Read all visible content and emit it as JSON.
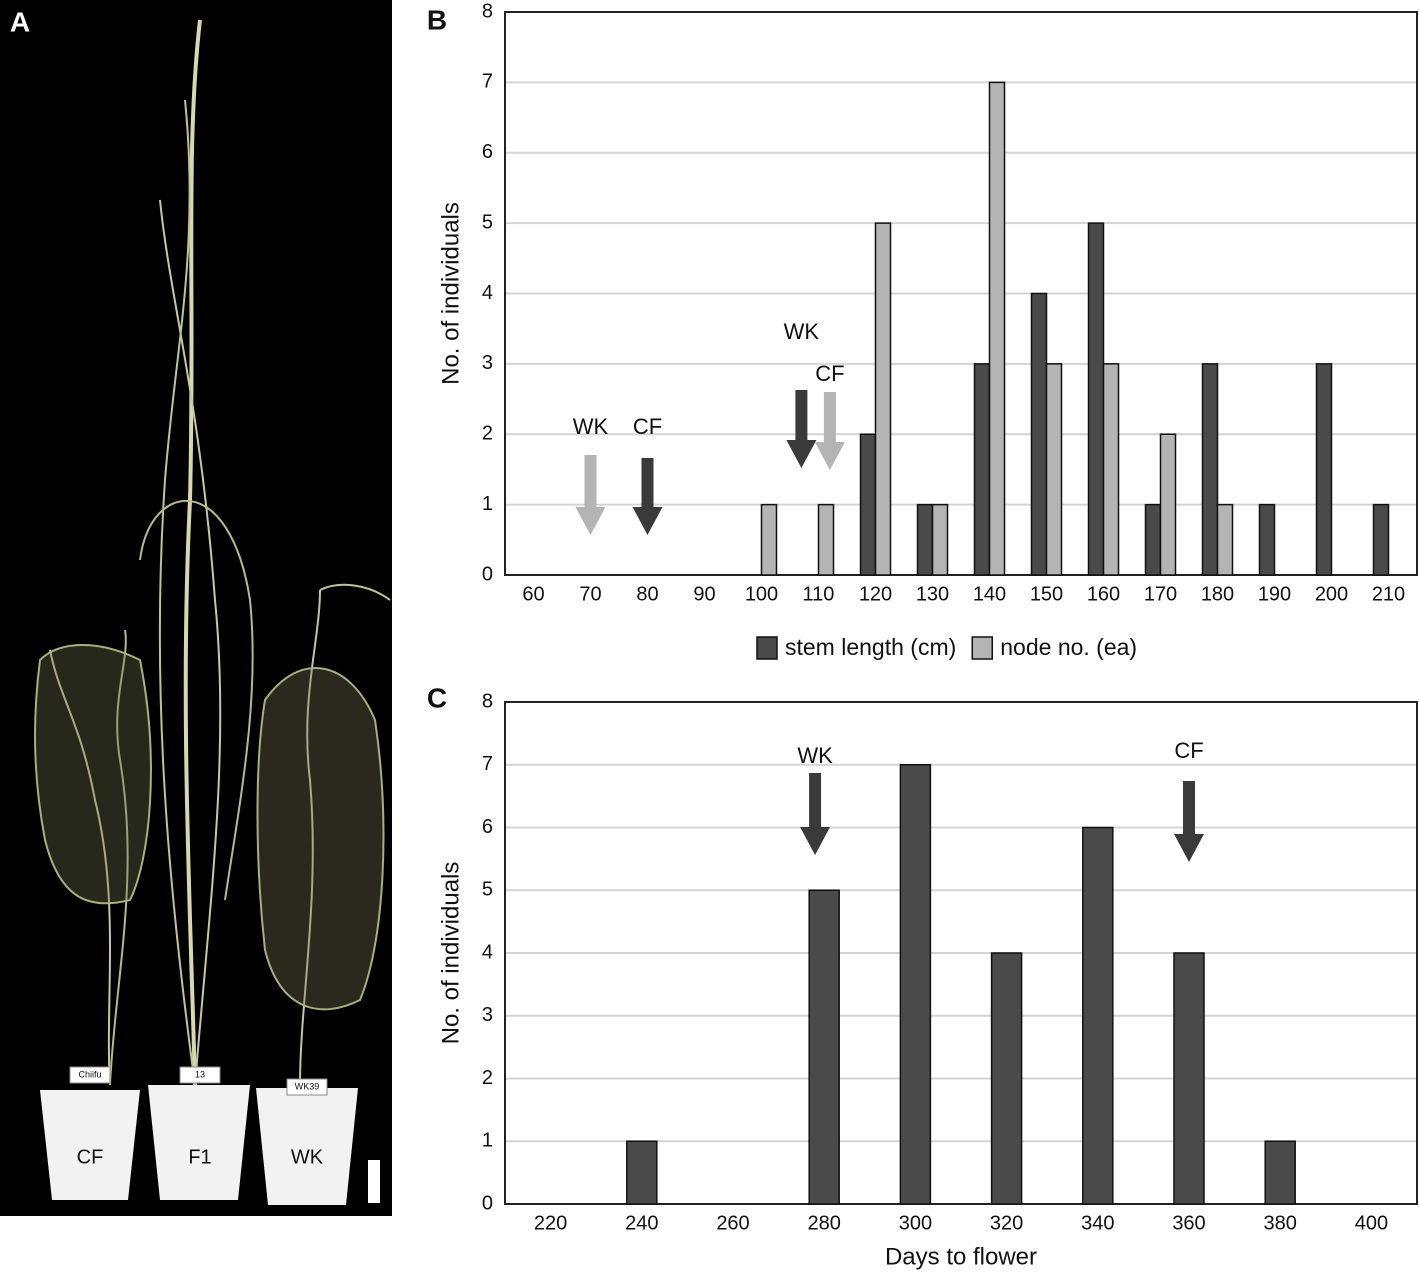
{
  "photo": {
    "label": "A",
    "pot_labels": [
      "CF",
      "F1",
      "WK"
    ],
    "tag_labels": [
      "Chiifu",
      "13",
      "WK39"
    ]
  },
  "chart_data": [
    {
      "type": "bar",
      "panel": "B",
      "ylabel": "No. of individuals",
      "categories": [
        "60",
        "70",
        "80",
        "90",
        "100",
        "110",
        "120",
        "130",
        "140",
        "150",
        "160",
        "170",
        "180",
        "190",
        "200",
        "210"
      ],
      "series": [
        {
          "name": "stem length (cm)",
          "color": "#4a4a4a",
          "values": [
            0,
            0,
            0,
            0,
            0,
            0,
            2,
            1,
            3,
            4,
            5,
            1,
            3,
            1,
            3,
            1
          ]
        },
        {
          "name": "node no. (ea)",
          "color": "#b4b4b4",
          "values": [
            0,
            0,
            0,
            0,
            1,
            1,
            5,
            1,
            7,
            3,
            3,
            2,
            1,
            0,
            0,
            0
          ]
        }
      ],
      "ylim": [
        0,
        8
      ],
      "yticks": [
        0,
        1,
        2,
        3,
        4,
        5,
        6,
        7,
        8
      ],
      "grid": true,
      "legend": "bottom",
      "annotations": [
        {
          "label": "WK",
          "x": 70,
          "color": "#b4b4b4"
        },
        {
          "label": "CF",
          "x": 80,
          "color": "#3a3a3a"
        },
        {
          "label": "WK",
          "x": 107,
          "color": "#3a3a3a"
        },
        {
          "label": "CF",
          "x": 112,
          "color": "#b4b4b4"
        }
      ]
    },
    {
      "type": "bar",
      "panel": "C",
      "ylabel": "No. of individuals",
      "xlabel": "Days to flower",
      "categories": [
        "220",
        "240",
        "260",
        "280",
        "300",
        "320",
        "340",
        "360",
        "380",
        "400"
      ],
      "values": [
        0,
        1,
        0,
        5,
        7,
        4,
        6,
        4,
        1,
        0
      ],
      "color": "#4a4a4a",
      "ylim": [
        0,
        8
      ],
      "yticks": [
        0,
        1,
        2,
        3,
        4,
        5,
        6,
        7,
        8
      ],
      "grid": true,
      "annotations": [
        {
          "label": "WK",
          "x": 278,
          "color": "#3a3a3a"
        },
        {
          "label": "CF",
          "x": 360,
          "color": "#3a3a3a"
        }
      ]
    }
  ]
}
